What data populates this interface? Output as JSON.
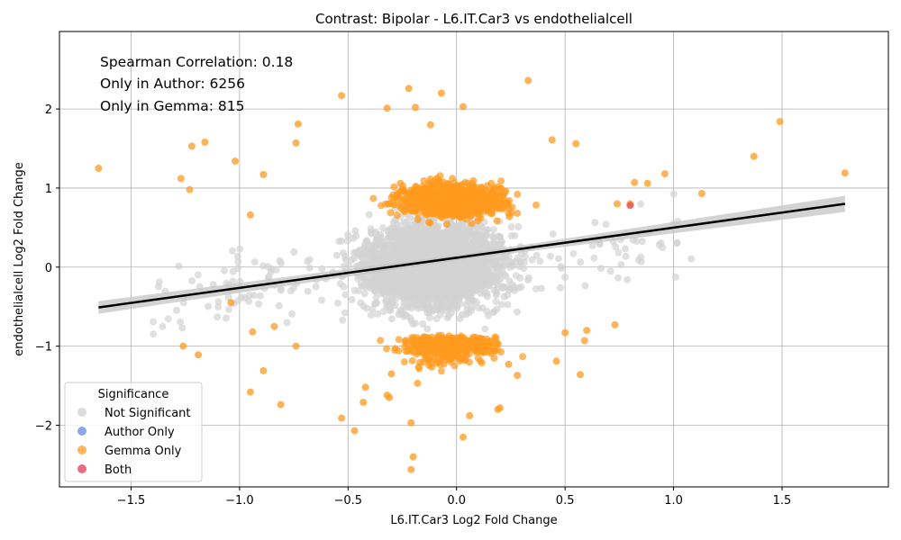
{
  "chart_data": {
    "type": "scatter",
    "title": "Contrast: Bipolar - L6.IT.Car3 vs endothelialcell",
    "xlabel": "L6.IT.Car3 Log2 Fold Change",
    "ylabel": "endothelialcell Log2 Fold Change",
    "xlim": [
      -1.83,
      1.99
    ],
    "ylim": [
      -2.78,
      2.98
    ],
    "xticks": [
      -1.5,
      -1.0,
      -0.5,
      0.0,
      0.5,
      1.0,
      1.5
    ],
    "xtick_labels": [
      "−1.5",
      "−1.0",
      "−0.5",
      "0.0",
      "0.5",
      "1.0",
      "1.5"
    ],
    "yticks": [
      -2,
      -1,
      0,
      1,
      2
    ],
    "ytick_labels": [
      "−2",
      "−1",
      "0",
      "1",
      "2"
    ],
    "grid": true,
    "annotations": [
      "Spearman Correlation: 0.18",
      "Only in Author: 6256",
      "Only in Gemma: 815"
    ],
    "legend": {
      "title": "Significance",
      "placement": "lower-left",
      "entries": [
        {
          "name": "Not Significant",
          "color": "#d3d3d3"
        },
        {
          "name": "Author Only",
          "color": "#6f8fe6"
        },
        {
          "name": "Gemma Only",
          "color": "#ffa233"
        },
        {
          "name": "Both",
          "color": "#e04a5f"
        }
      ]
    },
    "regression_line": {
      "x": [
        -1.65,
        1.79
      ],
      "y": [
        -0.51,
        0.8
      ],
      "color": "#000000",
      "ci_color": "#c8c8c8"
    },
    "series": [
      {
        "name": "Gemma Only",
        "color": "#ff9a1f",
        "x": [
          -1.65,
          -1.27,
          -1.23,
          -1.22,
          -1.16,
          -1.02,
          -0.95,
          -0.89,
          -0.73,
          -0.74,
          -0.53,
          -0.32,
          -0.22,
          -0.19,
          -0.12,
          -0.07,
          0.03,
          0.33,
          0.44,
          0.55,
          0.96,
          1.37,
          1.49,
          1.79,
          1.13,
          0.88,
          0.82,
          0.74,
          0.8,
          -0.84,
          -0.95,
          -1.04,
          -1.26,
          -1.19,
          -0.89,
          -0.81,
          -0.74,
          -0.94,
          -0.53,
          -0.47,
          -0.43,
          -0.32,
          -0.21,
          -0.21,
          0.03,
          0.19,
          0.28,
          -0.2,
          0.57,
          0.73,
          0.6,
          0.46,
          0.59,
          0.5,
          0.24,
          -0.31,
          -0.42,
          -0.3,
          -0.18,
          0.06,
          0.2
        ],
        "y": [
          1.25,
          1.12,
          0.98,
          1.53,
          1.58,
          1.34,
          0.66,
          1.17,
          1.81,
          1.57,
          2.17,
          2.01,
          2.26,
          2.02,
          1.8,
          2.2,
          2.03,
          2.36,
          1.61,
          1.56,
          1.18,
          1.4,
          1.84,
          1.19,
          0.93,
          1.06,
          1.07,
          0.8,
          0.8,
          -0.75,
          -1.58,
          -0.45,
          -1.0,
          -1.11,
          -1.31,
          -1.74,
          -1.0,
          -0.82,
          -1.91,
          -2.07,
          -1.71,
          -1.62,
          -2.56,
          -1.97,
          -2.15,
          -1.8,
          -1.37,
          -2.4,
          -1.36,
          -0.73,
          -0.8,
          -1.19,
          -0.93,
          -0.83,
          -1.23,
          -1.65,
          -1.52,
          -1.35,
          -1.47,
          -1.88,
          -1.78
        ]
      },
      {
        "name": "Both",
        "color": "#e04a5f",
        "x": [
          0.8
        ],
        "y": [
          0.78
        ]
      }
    ]
  }
}
